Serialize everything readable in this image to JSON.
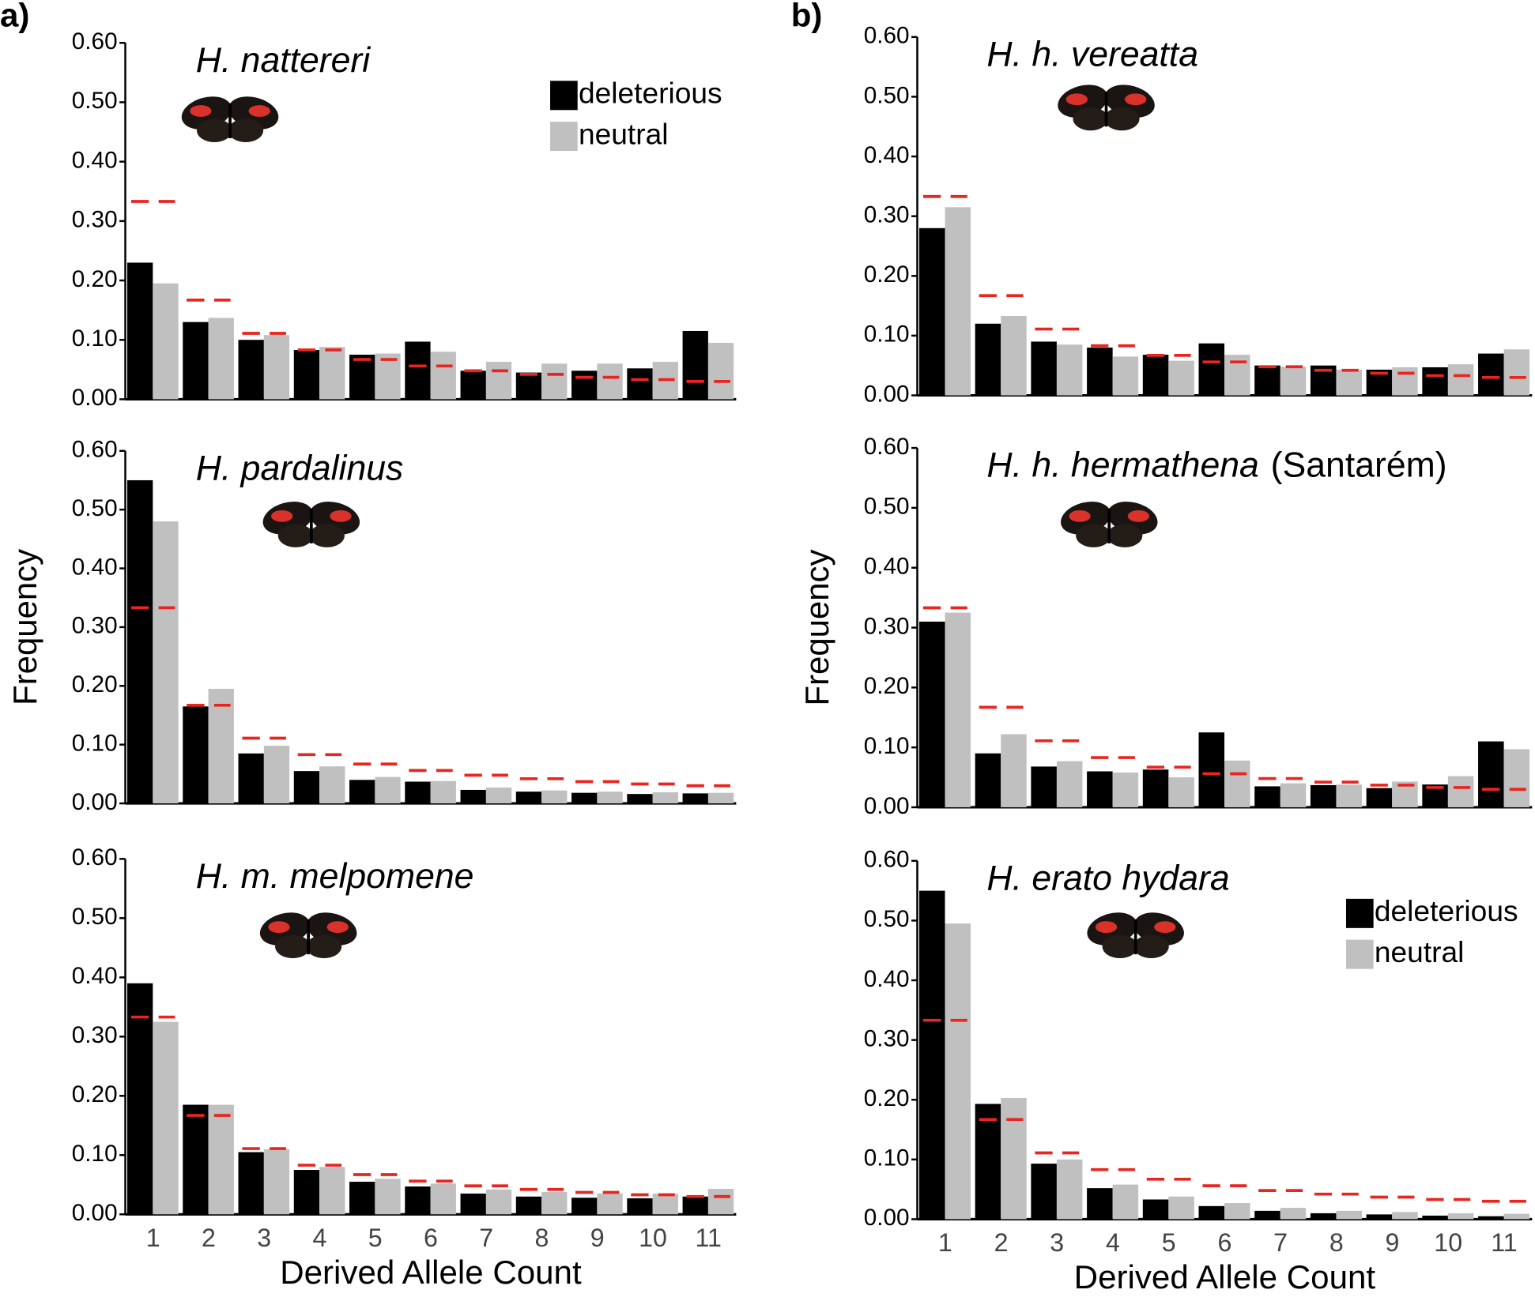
{
  "panel_labels": [
    "a)",
    "b)"
  ],
  "chart_data": [
    {
      "type": "bar",
      "title": "H. nattereri",
      "ylim": [
        0,
        0.6
      ],
      "yticks": [
        {
          "value": 0,
          "label": "0.00"
        },
        {
          "value": 0.1,
          "label": "0.10"
        },
        {
          "value": 0.2,
          "label": "0.20"
        },
        {
          "value": 0.3,
          "label": "0.30"
        },
        {
          "value": 0.4,
          "label": "0.40"
        },
        {
          "value": 0.5,
          "label": "0.50"
        },
        {
          "value": 0.6,
          "label": "0.60"
        }
      ],
      "legend": "upper right",
      "series": [
        {
          "name": "deleterious",
          "color": "#000000",
          "values": [
            0.23,
            0.13,
            0.1,
            0.083,
            0.075,
            0.097,
            0.048,
            0.045,
            0.048,
            0.052,
            0.115
          ]
        },
        {
          "name": "neutral",
          "color": "#c0c0c0",
          "values": [
            0.195,
            0.137,
            0.108,
            0.088,
            0.077,
            0.08,
            0.063,
            0.06,
            0.06,
            0.063,
            0.095
          ]
        },
        {
          "color": "#e8251f",
          "style": "dashed",
          "values": [
            0.333,
            0.167,
            0.111,
            0.083,
            0.067,
            0.056,
            0.048,
            0.042,
            0.037,
            0.033,
            0.03
          ]
        }
      ]
    },
    {
      "type": "bar",
      "title": "H. pardalinus",
      "ylabel": "Frequency",
      "ylim": [
        0,
        0.6
      ],
      "yticks": [
        {
          "value": 0,
          "label": "0.00"
        },
        {
          "value": 0.1,
          "label": "0.10"
        },
        {
          "value": 0.2,
          "label": "0.20"
        },
        {
          "value": 0.3,
          "label": "0.30"
        },
        {
          "value": 0.4,
          "label": "0.40"
        },
        {
          "value": 0.5,
          "label": "0.50"
        },
        {
          "value": 0.6,
          "label": "0.60"
        }
      ],
      "series": [
        {
          "color": "#000000",
          "values": [
            0.55,
            0.165,
            0.085,
            0.055,
            0.04,
            0.037,
            0.023,
            0.02,
            0.018,
            0.016,
            0.017
          ]
        },
        {
          "color": "#c0c0c0",
          "values": [
            0.48,
            0.195,
            0.098,
            0.063,
            0.045,
            0.038,
            0.027,
            0.022,
            0.02,
            0.019,
            0.018
          ]
        },
        {
          "color": "#e8251f",
          "style": "dashed",
          "values": [
            0.333,
            0.167,
            0.111,
            0.083,
            0.067,
            0.056,
            0.048,
            0.042,
            0.037,
            0.033,
            0.03
          ]
        }
      ]
    },
    {
      "type": "bar",
      "title": "H. m. melpomene",
      "xlabel": "Derived Allele Count",
      "ylim": [
        0,
        0.6
      ],
      "categories": [
        "1",
        "2",
        "3",
        "4",
        "5",
        "6",
        "7",
        "8",
        "9",
        "10",
        "11"
      ],
      "yticks": [
        {
          "value": 0,
          "label": "0.00"
        },
        {
          "value": 0.1,
          "label": "0.10"
        },
        {
          "value": 0.2,
          "label": "0.20"
        },
        {
          "value": 0.3,
          "label": "0.30"
        },
        {
          "value": 0.4,
          "label": "0.40"
        },
        {
          "value": 0.5,
          "label": "0.50"
        },
        {
          "value": 0.6,
          "label": "0.60"
        }
      ],
      "series": [
        {
          "color": "#000000",
          "values": [
            0.39,
            0.185,
            0.105,
            0.075,
            0.055,
            0.047,
            0.035,
            0.03,
            0.028,
            0.027,
            0.03
          ]
        },
        {
          "color": "#c0c0c0",
          "values": [
            0.325,
            0.185,
            0.11,
            0.08,
            0.06,
            0.052,
            0.042,
            0.038,
            0.035,
            0.035,
            0.043
          ]
        },
        {
          "color": "#e8251f",
          "style": "dashed",
          "values": [
            0.333,
            0.167,
            0.111,
            0.083,
            0.067,
            0.056,
            0.048,
            0.042,
            0.037,
            0.033,
            0.03
          ]
        }
      ]
    },
    {
      "type": "bar",
      "title": "H. h. vereatta",
      "ylim": [
        0,
        0.6
      ],
      "yticks": [
        {
          "value": 0,
          "label": "0.00"
        },
        {
          "value": 0.1,
          "label": "0.10"
        },
        {
          "value": 0.2,
          "label": "0.20"
        },
        {
          "value": 0.3,
          "label": "0.30"
        },
        {
          "value": 0.4,
          "label": "0.40"
        },
        {
          "value": 0.5,
          "label": "0.50"
        },
        {
          "value": 0.6,
          "label": "0.60"
        }
      ],
      "series": [
        {
          "color": "#000000",
          "values": [
            0.28,
            0.12,
            0.09,
            0.08,
            0.068,
            0.087,
            0.05,
            0.05,
            0.043,
            0.047,
            0.07
          ]
        },
        {
          "color": "#c0c0c0",
          "values": [
            0.315,
            0.133,
            0.085,
            0.065,
            0.058,
            0.068,
            0.048,
            0.043,
            0.047,
            0.052,
            0.077
          ]
        },
        {
          "color": "#e8251f",
          "style": "dashed",
          "values": [
            0.333,
            0.167,
            0.111,
            0.083,
            0.067,
            0.056,
            0.048,
            0.042,
            0.037,
            0.033,
            0.03
          ]
        }
      ]
    },
    {
      "type": "bar",
      "title": "H. h. hermathena",
      "subtitle": "(Santarém)",
      "ylabel": "Frequency",
      "ylim": [
        0,
        0.6
      ],
      "yticks": [
        {
          "value": 0,
          "label": "0.00"
        },
        {
          "value": 0.1,
          "label": "0.10"
        },
        {
          "value": 0.2,
          "label": "0.20"
        },
        {
          "value": 0.3,
          "label": "0.30"
        },
        {
          "value": 0.4,
          "label": "0.40"
        },
        {
          "value": 0.5,
          "label": "0.50"
        },
        {
          "value": 0.6,
          "label": "0.60"
        }
      ],
      "series": [
        {
          "color": "#000000",
          "values": [
            0.31,
            0.09,
            0.068,
            0.06,
            0.063,
            0.125,
            0.035,
            0.037,
            0.032,
            0.038,
            0.11
          ]
        },
        {
          "color": "#c0c0c0",
          "values": [
            0.325,
            0.122,
            0.077,
            0.058,
            0.05,
            0.078,
            0.04,
            0.038,
            0.043,
            0.052,
            0.097
          ]
        },
        {
          "color": "#e8251f",
          "style": "dashed",
          "values": [
            0.333,
            0.167,
            0.111,
            0.083,
            0.067,
            0.056,
            0.048,
            0.042,
            0.037,
            0.033,
            0.03
          ]
        }
      ]
    },
    {
      "type": "bar",
      "title": "H. erato hydara",
      "xlabel": "Derived Allele Count",
      "ylim": [
        0,
        0.6
      ],
      "categories": [
        "1",
        "2",
        "3",
        "4",
        "5",
        "6",
        "7",
        "8",
        "9",
        "10",
        "11"
      ],
      "yticks": [
        {
          "value": 0,
          "label": "0.00"
        },
        {
          "value": 0.1,
          "label": "0.10"
        },
        {
          "value": 0.2,
          "label": "0.20"
        },
        {
          "value": 0.3,
          "label": "0.30"
        },
        {
          "value": 0.4,
          "label": "0.40"
        },
        {
          "value": 0.5,
          "label": "0.50"
        },
        {
          "value": 0.6,
          "label": "0.60"
        }
      ],
      "legend": "upper right",
      "series": [
        {
          "name": "deleterious",
          "color": "#000000",
          "values": [
            0.55,
            0.193,
            0.093,
            0.052,
            0.033,
            0.022,
            0.014,
            0.01,
            0.008,
            0.006,
            0.005
          ]
        },
        {
          "name": "neutral",
          "color": "#c0c0c0",
          "values": [
            0.495,
            0.203,
            0.1,
            0.058,
            0.038,
            0.027,
            0.019,
            0.014,
            0.012,
            0.01,
            0.009
          ]
        },
        {
          "color": "#e8251f",
          "style": "dashed",
          "values": [
            0.333,
            0.167,
            0.111,
            0.083,
            0.067,
            0.056,
            0.048,
            0.042,
            0.037,
            0.033,
            0.03
          ]
        }
      ]
    }
  ]
}
